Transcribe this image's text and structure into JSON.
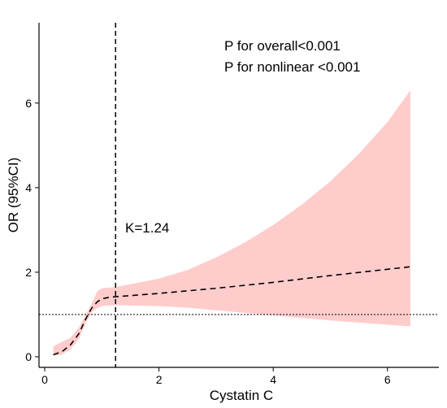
{
  "chart_data": {
    "type": "line",
    "title": "",
    "xlabel": "Cystatin C",
    "ylabel": "OR (95%CI)",
    "xlim": [
      -0.1,
      6.9
    ],
    "ylim": [
      -0.25,
      7.9
    ],
    "x_ticks": [
      0,
      2,
      4,
      6
    ],
    "y_ticks": [
      0,
      2,
      4,
      6
    ],
    "grid": false,
    "reference_lines": {
      "knot_x": 1.24,
      "or_y": 1.0
    },
    "series": [
      {
        "style": "dashed",
        "color": "#000000",
        "points": [
          [
            0.15,
            0.05
          ],
          [
            0.3,
            0.12
          ],
          [
            0.45,
            0.28
          ],
          [
            0.6,
            0.55
          ],
          [
            0.72,
            0.9
          ],
          [
            0.82,
            1.15
          ],
          [
            0.92,
            1.3
          ],
          [
            1.0,
            1.37
          ],
          [
            1.1,
            1.4
          ],
          [
            1.24,
            1.42
          ],
          [
            2.0,
            1.5
          ],
          [
            3.0,
            1.62
          ],
          [
            4.0,
            1.76
          ],
          [
            5.0,
            1.92
          ],
          [
            6.0,
            2.07
          ],
          [
            6.4,
            2.13
          ]
        ]
      }
    ],
    "confidence_band": {
      "color": "#ffcccc",
      "points": [
        {
          "x": 0.15,
          "lo": 0.02,
          "hi": 0.25
        },
        {
          "x": 0.3,
          "lo": 0.05,
          "hi": 0.35
        },
        {
          "x": 0.45,
          "lo": 0.18,
          "hi": 0.45
        },
        {
          "x": 0.6,
          "lo": 0.42,
          "hi": 0.7
        },
        {
          "x": 0.72,
          "lo": 0.8,
          "hi": 1.0
        },
        {
          "x": 0.82,
          "lo": 1.05,
          "hi": 1.25
        },
        {
          "x": 0.92,
          "lo": 1.15,
          "hi": 1.55
        },
        {
          "x": 1.0,
          "lo": 1.2,
          "hi": 1.62
        },
        {
          "x": 1.24,
          "lo": 1.22,
          "hi": 1.65
        },
        {
          "x": 2.0,
          "lo": 1.2,
          "hi": 1.85
        },
        {
          "x": 2.5,
          "lo": 1.16,
          "hi": 2.05
        },
        {
          "x": 3.0,
          "lo": 1.1,
          "hi": 2.35
        },
        {
          "x": 3.5,
          "lo": 1.04,
          "hi": 2.7
        },
        {
          "x": 4.0,
          "lo": 0.98,
          "hi": 3.12
        },
        {
          "x": 4.5,
          "lo": 0.92,
          "hi": 3.6
        },
        {
          "x": 5.0,
          "lo": 0.86,
          "hi": 4.15
        },
        {
          "x": 5.5,
          "lo": 0.81,
          "hi": 4.8
        },
        {
          "x": 6.0,
          "lo": 0.76,
          "hi": 5.55
        },
        {
          "x": 6.4,
          "lo": 0.72,
          "hi": 6.3
        }
      ]
    },
    "annotations": {
      "p_overall": "P for overall<0.001",
      "p_nonlinear": "P for nonlinear <0.001",
      "knot_label": "K=1.24"
    }
  }
}
